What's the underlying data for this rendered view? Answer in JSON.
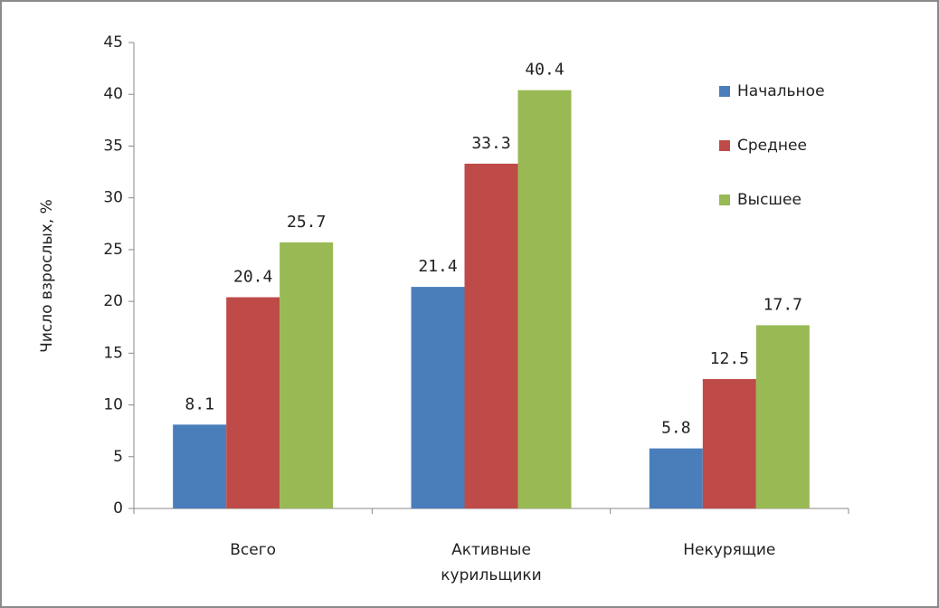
{
  "chart_data": {
    "type": "bar",
    "y_label": "Число взрослых, %",
    "categories": [
      "Всего",
      "Активные курильщики",
      "Некурящие"
    ],
    "series": [
      {
        "name": "Начальное",
        "color": "#4a7ebb",
        "values": [
          8.1,
          21.4,
          5.8
        ]
      },
      {
        "name": "Среднее",
        "color": "#be4b48",
        "values": [
          20.4,
          33.3,
          12.5
        ]
      },
      {
        "name": "Высшее",
        "color": "#98b954",
        "values": [
          25.7,
          40.4,
          17.7
        ]
      }
    ],
    "ylim": [
      0,
      45
    ],
    "yticks": [
      0,
      5,
      10,
      15,
      20,
      25,
      30,
      35,
      40,
      45
    ],
    "grid": false,
    "legend": "right"
  }
}
